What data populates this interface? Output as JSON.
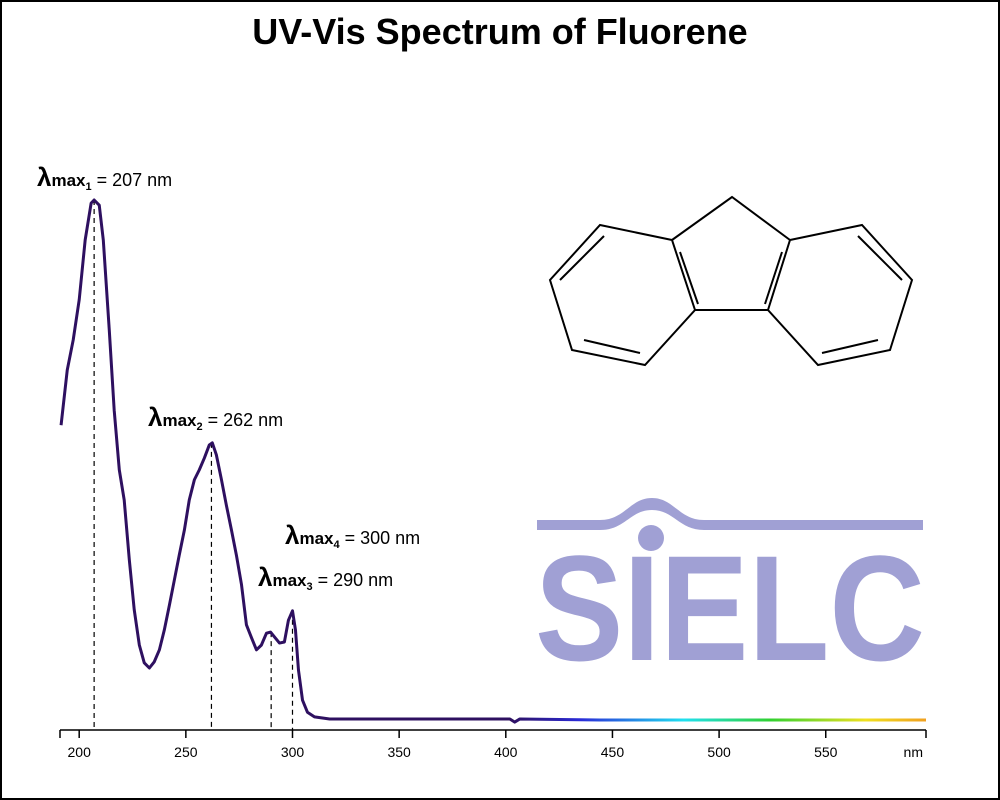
{
  "chart_data": {
    "type": "line",
    "title": "UV-Vis Spectrum of Fluorene",
    "xlabel": "nm",
    "logo": "SIELC",
    "xlim": [
      191,
      597
    ],
    "xticks": [
      200,
      250,
      300,
      350,
      400,
      450,
      500,
      550
    ],
    "ylim": [
      0,
      1
    ],
    "grid": false,
    "series": [
      {
        "color": "#2e1060",
        "x": [
          191.5,
          194.4,
          197.2,
          200,
          202.8,
          205.6,
          207,
          209.4,
          211.3,
          214.1,
          216.4,
          218.8,
          221.1,
          223.5,
          225.8,
          228.2,
          230.5,
          232.9,
          235.2,
          237.6,
          239.9,
          242.3,
          244.6,
          246.9,
          249.3,
          251.6,
          254,
          256.3,
          258.7,
          261,
          262.4,
          264.3,
          266.7,
          269,
          271.4,
          273.7,
          276.1,
          278.4,
          280.8,
          283.1,
          285.4,
          287.8,
          289.7,
          291.5,
          293.9,
          296.2,
          298.1,
          300,
          301.4,
          302.8,
          304.7,
          307,
          310.3,
          317.4,
          350.2,
          401.9,
          404.2,
          406.6,
          444,
          597
        ],
        "values": [
          0.567,
          0.673,
          0.731,
          0.808,
          0.923,
          0.994,
          1.0,
          0.99,
          0.923,
          0.75,
          0.596,
          0.481,
          0.423,
          0.308,
          0.212,
          0.144,
          0.11,
          0.1,
          0.112,
          0.135,
          0.173,
          0.221,
          0.269,
          0.317,
          0.365,
          0.423,
          0.462,
          0.481,
          0.504,
          0.529,
          0.533,
          0.51,
          0.462,
          0.413,
          0.365,
          0.317,
          0.26,
          0.183,
          0.158,
          0.135,
          0.144,
          0.167,
          0.169,
          0.16,
          0.148,
          0.15,
          0.192,
          0.21,
          0.173,
          0.096,
          0.038,
          0.015,
          0.006,
          0.002,
          0.002,
          0.002,
          -0.004,
          0.002,
          0,
          0
        ]
      }
    ],
    "annotations": [
      {
        "x": 207,
        "y": 1.0,
        "symbol": "λ",
        "subscript": "max",
        "index": "1",
        "text": " = 207 nm"
      },
      {
        "x": 262,
        "y": 0.533,
        "symbol": "λ",
        "subscript": "max",
        "index": "2",
        "text": " = 262 nm"
      },
      {
        "x": 290,
        "y": 0.169,
        "symbol": "λ",
        "subscript": "max",
        "index": "3",
        "text": " = 290 nm"
      },
      {
        "x": 300,
        "y": 0.21,
        "symbol": "λ",
        "subscript": "max",
        "index": "4",
        "text": " = 300 nm"
      }
    ]
  }
}
